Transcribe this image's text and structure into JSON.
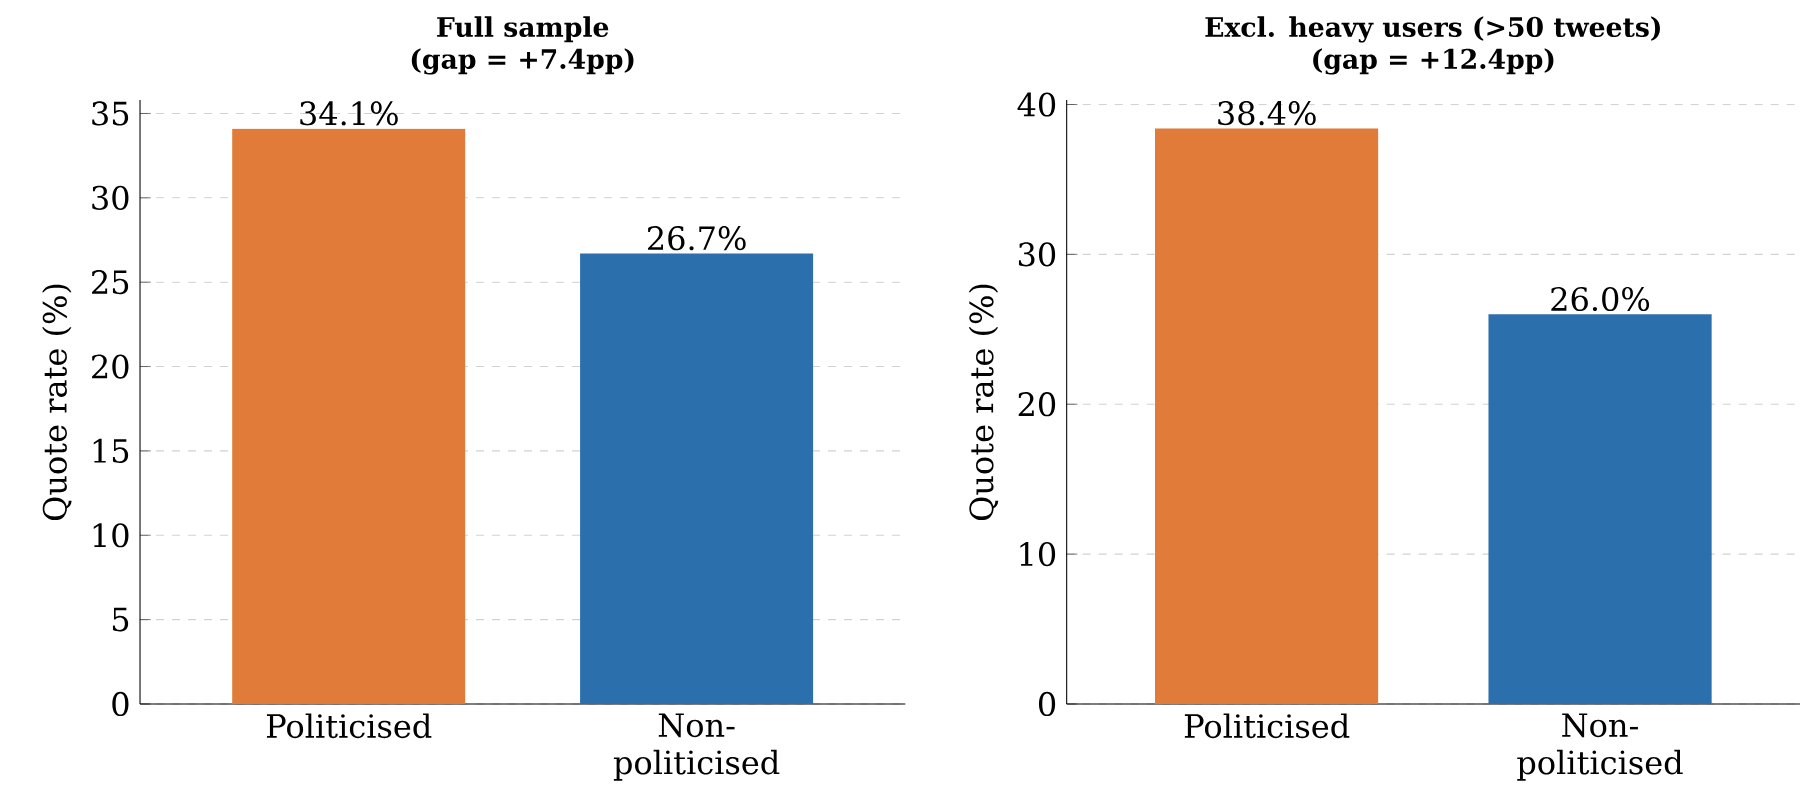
{
  "chart_data": [
    {
      "type": "bar",
      "title": "Full sample",
      "subtitle": "(gap = +7.4pp)",
      "ylabel": "Quote rate (%)",
      "categories": [
        "Politicised",
        "Non-politicised"
      ],
      "values": [
        34.1,
        26.7
      ],
      "colors": [
        "#e07b39",
        "#2c6fad"
      ],
      "value_labels": [
        "34.1%",
        "26.7%"
      ],
      "ylim": [
        0,
        35.8
      ],
      "yticks": [
        0,
        5,
        10,
        15,
        20,
        25,
        30,
        35
      ],
      "grid": "y"
    },
    {
      "type": "bar",
      "title": "Excl. heavy users (>50 tweets)",
      "subtitle": "(gap = +12.4pp)",
      "ylabel": "Quote rate (%)",
      "categories": [
        "Politicised",
        "Non-politicised"
      ],
      "values": [
        38.4,
        26.0
      ],
      "colors": [
        "#e07b39",
        "#2c6fad"
      ],
      "value_labels": [
        "38.4%",
        "26.0%"
      ],
      "ylim": [
        0,
        40.3
      ],
      "yticks": [
        0,
        10,
        20,
        30,
        40
      ],
      "grid": "y"
    }
  ]
}
